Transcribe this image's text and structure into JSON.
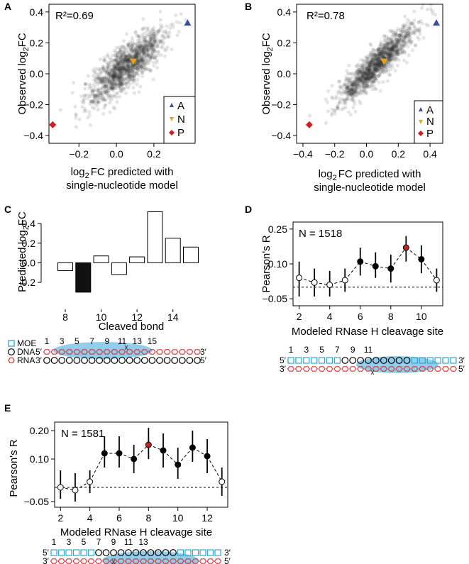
{
  "colors": {
    "A": "#3a4e9a",
    "N": "#e8a418",
    "P": "#d11f1f",
    "highlight": "#c42323",
    "moe": "#2aa7cf",
    "rna": "#d63030",
    "bubble": "#7fc6e8",
    "scatter": "#2b2b2b"
  },
  "panels": {
    "A": {
      "letter": "A"
    },
    "B": {
      "letter": "B"
    },
    "C": {
      "letter": "C"
    },
    "D": {
      "letter": "D"
    },
    "E": {
      "letter": "E"
    }
  },
  "legend": {
    "A": "A",
    "N": "N",
    "P": "P"
  },
  "diagram": {
    "moe": "MOE",
    "dna": "DNA",
    "rna": "RNA",
    "five": "5′",
    "three": "3′"
  },
  "chart_data": [
    {
      "id": "A",
      "type": "scatter",
      "r2": "R²=0.69",
      "xlabel_prefix": "log",
      "xlabel_sub": "2",
      "xlabel_suffix": "FC predicted with",
      "xlabel_line2": "single-nucleotide model",
      "ylabel_prefix": "Observed log",
      "ylabel_sub": "2",
      "ylabel_suffix": "FC",
      "xlim": [
        -0.36,
        0.42
      ],
      "ylim": [
        -0.45,
        0.45
      ],
      "xticks": [
        -0.2,
        0.0,
        0.2
      ],
      "xtick_labels": [
        "−0.2",
        "0.0",
        "0.2"
      ],
      "yticks": [
        -0.4,
        -0.2,
        0.0,
        0.2,
        0.4
      ],
      "ytick_labels": [
        "−0.4",
        "−0.2",
        "0.0",
        "0.2",
        "0.4"
      ],
      "cloud": {
        "slope": 0.95,
        "spread": 0.07,
        "n": 1300,
        "xmean": 0.05,
        "xsd": 0.1
      },
      "special_points": [
        {
          "label": "A",
          "shape": "triangle-up",
          "x": 0.38,
          "y": 0.33
        },
        {
          "label": "N",
          "shape": "triangle-down",
          "x": 0.09,
          "y": 0.08
        },
        {
          "label": "P",
          "shape": "diamond",
          "x": -0.34,
          "y": -0.33
        }
      ]
    },
    {
      "id": "B",
      "type": "scatter",
      "r2": "R²=0.78",
      "xlabel_prefix": "log",
      "xlabel_sub": "2",
      "xlabel_suffix": "FC predicted with",
      "xlabel_line2": "single-nucleotide model",
      "ylabel_prefix": "Observed log",
      "ylabel_sub": "2",
      "ylabel_suffix": "FC",
      "xlim": [
        -0.44,
        0.48
      ],
      "ylim": [
        -0.45,
        0.45
      ],
      "xticks": [
        -0.4,
        -0.2,
        0.0,
        0.2,
        0.4
      ],
      "xtick_labels": [
        "−0.4",
        "−0.2",
        "0.0",
        "0.2",
        "0.4"
      ],
      "yticks": [
        -0.4,
        -0.2,
        0.0,
        0.2,
        0.4
      ],
      "ytick_labels": [
        "−0.4",
        "−0.2",
        "0.0",
        "0.2",
        "0.4"
      ],
      "cloud": {
        "slope": 0.95,
        "spread": 0.055,
        "n": 1300,
        "xmean": 0.06,
        "xsd": 0.12
      },
      "special_points": [
        {
          "label": "A",
          "shape": "triangle-up",
          "x": 0.44,
          "y": 0.33
        },
        {
          "label": "N",
          "shape": "triangle-down",
          "x": 0.11,
          "y": 0.08
        },
        {
          "label": "P",
          "shape": "diamond",
          "x": -0.36,
          "y": -0.33
        }
      ]
    },
    {
      "id": "C",
      "type": "bar",
      "xlabel": "Cleaved bond",
      "ylabel_prefix": "Predicted log",
      "ylabel_sub": "2",
      "ylabel_suffix": "FC",
      "categories": [
        8,
        9,
        10,
        11,
        12,
        13,
        14,
        15
      ],
      "values": [
        -0.08,
        -0.3,
        0.07,
        -0.12,
        0.06,
        0.52,
        0.25,
        0.16
      ],
      "highlight_index": 1,
      "ylim": [
        -0.33,
        0.56
      ],
      "yticks": [
        -0.2,
        0.0,
        0.2,
        0.4
      ],
      "ytick_labels": [
        "-0.2",
        "0.0",
        "0.2",
        "0.4"
      ],
      "xticks": [
        8,
        10,
        12,
        14
      ],
      "xtick_labels": [
        "8",
        "10",
        "12",
        "14"
      ]
    },
    {
      "id": "D",
      "type": "line",
      "n_label": "N = 1518",
      "xlabel": "Modeled RNase H cleavage site",
      "ylabel": "Pearson's R",
      "x": [
        2,
        3,
        4,
        5,
        6,
        7,
        8,
        9,
        10,
        11
      ],
      "y": [
        0.04,
        0.02,
        0.01,
        0.03,
        0.11,
        0.09,
        0.08,
        0.17,
        0.12,
        0.03
      ],
      "lo": [
        -0.04,
        -0.04,
        -0.04,
        -0.02,
        0.05,
        0.04,
        0.02,
        0.11,
        0.06,
        -0.02
      ],
      "hi": [
        0.11,
        0.08,
        0.07,
        0.08,
        0.17,
        0.15,
        0.14,
        0.22,
        0.18,
        0.08
      ],
      "filled": [
        false,
        false,
        false,
        false,
        true,
        true,
        true,
        true,
        true,
        false
      ],
      "highlight_index": 7,
      "xlim": [
        1.6,
        11.4
      ],
      "ylim": [
        -0.08,
        0.28
      ],
      "yticks": [
        -0.05,
        0.1,
        0.25
      ],
      "ytick_labels": [
        "−0.05",
        "0.10",
        "0.25"
      ],
      "xticks": [
        2,
        4,
        6,
        8,
        10
      ],
      "xtick_labels": [
        "2",
        "4",
        "6",
        "8",
        "10"
      ]
    },
    {
      "id": "E",
      "type": "line",
      "n_label": "N = 1581",
      "xlabel": "Modeled RNase H cleavage site",
      "ylabel": "Pearson's R",
      "x": [
        2,
        3,
        4,
        5,
        6,
        7,
        8,
        9,
        10,
        11,
        12,
        13
      ],
      "y": [
        0.0,
        -0.01,
        0.02,
        0.12,
        0.12,
        0.1,
        0.15,
        0.13,
        0.08,
        0.14,
        0.11,
        0.02
      ],
      "lo": [
        -0.04,
        -0.05,
        -0.02,
        0.07,
        0.07,
        0.05,
        0.1,
        0.07,
        0.03,
        0.09,
        0.05,
        -0.03
      ],
      "hi": [
        0.06,
        0.05,
        0.06,
        0.18,
        0.18,
        0.15,
        0.21,
        0.19,
        0.14,
        0.2,
        0.17,
        0.07
      ],
      "filled": [
        false,
        false,
        false,
        true,
        true,
        true,
        true,
        true,
        true,
        true,
        true,
        false
      ],
      "highlight_index": 6,
      "xlim": [
        1.6,
        13.4
      ],
      "ylim": [
        -0.07,
        0.23
      ],
      "yticks": [
        -0.05,
        0.1,
        0.2
      ],
      "ytick_labels": [
        "−0.05",
        "0.10",
        "0.20"
      ],
      "xticks": [
        2,
        4,
        6,
        8,
        10,
        12
      ],
      "xtick_labels": [
        "2",
        "4",
        "6",
        "8",
        "10",
        "12"
      ]
    }
  ],
  "diagrams": {
    "C": {
      "numbers": [
        "1",
        "3",
        "5",
        "7",
        "9",
        "11",
        "13",
        "15"
      ]
    },
    "D": {
      "numbers": [
        "1",
        "3",
        "5",
        "7",
        "9",
        "11"
      ]
    },
    "E": {
      "numbers": [
        "1",
        "3",
        "5",
        "7",
        "9",
        "11",
        "13"
      ]
    }
  }
}
